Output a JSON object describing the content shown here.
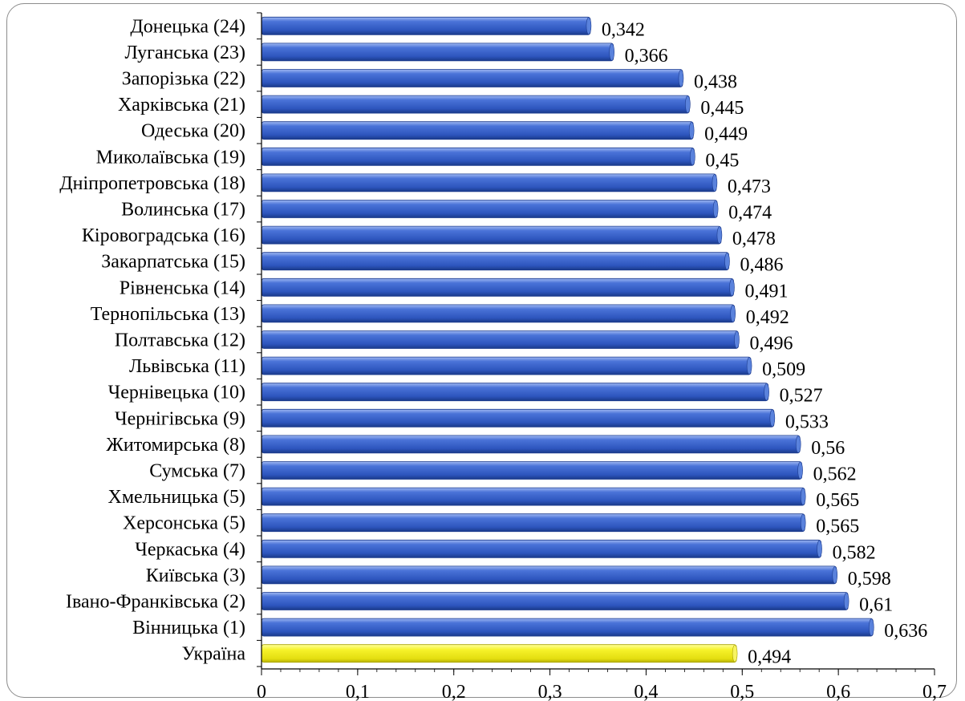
{
  "chart_data": {
    "type": "bar",
    "orientation": "horizontal",
    "categories": [
      "Донецька (24)",
      "Луганська (23)",
      "Запорізька (22)",
      "Харківська (21)",
      "Одеська (20)",
      "Миколаївська (19)",
      "Дніпропетровська (18)",
      "Волинська (17)",
      "Кіровоградська (16)",
      "Закарпатська (15)",
      "Рівненська (14)",
      "Тернопільська (13)",
      "Полтавська (12)",
      "Львівська (11)",
      "Чернівецька (10)",
      "Чернігівська (9)",
      "Житомирська (8)",
      "Сумська (7)",
      "Хмельницька (5)",
      "Херсонська (5)",
      "Черкаська (4)",
      "Київська (3)",
      "Івано-Франківська (2)",
      "Вінницька (1)",
      "Україна"
    ],
    "values": [
      0.342,
      0.366,
      0.438,
      0.445,
      0.449,
      0.45,
      0.473,
      0.474,
      0.478,
      0.486,
      0.491,
      0.492,
      0.496,
      0.509,
      0.527,
      0.533,
      0.56,
      0.562,
      0.565,
      0.565,
      0.582,
      0.598,
      0.61,
      0.636,
      0.494
    ],
    "value_labels": [
      "0,342",
      "0,366",
      "0,438",
      "0,445",
      "0,449",
      "0,45",
      "0,473",
      "0,474",
      "0,478",
      "0,486",
      "0,491",
      "0,492",
      "0,496",
      "0,509",
      "0,527",
      "0,533",
      "0,56",
      "0,562",
      "0,565",
      "0,565",
      "0,582",
      "0,598",
      "0,61",
      "0,636",
      "0,494"
    ],
    "highlight_index": 24,
    "xlim": [
      0,
      0.7
    ],
    "xticks": [
      "0",
      "0,1",
      "0,2",
      "0,3",
      "0,4",
      "0,5",
      "0,6",
      "0,7"
    ],
    "bar_color": "#3a63c9",
    "highlight_color": "#f2ee1c",
    "grid": false,
    "legend": "none"
  }
}
